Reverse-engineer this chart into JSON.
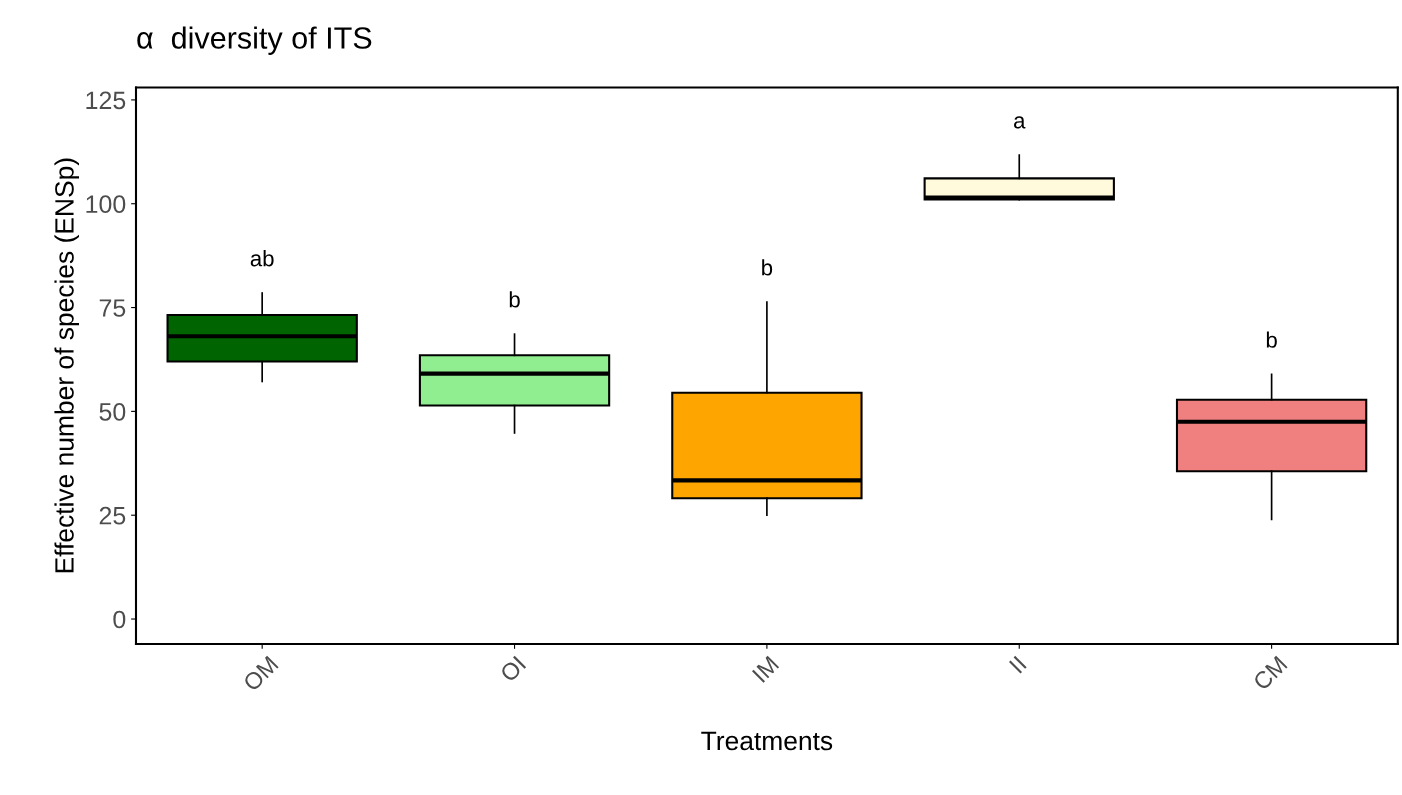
{
  "chart_data": {
    "type": "box",
    "title": "α  diversity of ITS",
    "xlabel": "Treatments",
    "ylabel": "Effective number of species (ENSp)",
    "categories": [
      "OM",
      "OI",
      "IM",
      "II",
      "CM"
    ],
    "colors": [
      "#006400",
      "#90ee90",
      "#ffa500",
      "#fffadc",
      "#f08080"
    ],
    "boxes": [
      {
        "low": 57.2,
        "q1": 62.0,
        "median": 68.1,
        "q3": 73.2,
        "high": 78.5
      },
      {
        "low": 44.8,
        "q1": 51.4,
        "median": 59.1,
        "q3": 63.5,
        "high": 68.6
      },
      {
        "low": 25.0,
        "q1": 29.1,
        "median": 33.4,
        "q3": 54.5,
        "high": 76.3
      },
      {
        "low": 101.0,
        "q1": 101.0,
        "median": 101.5,
        "q3": 106.1,
        "high": 111.7
      },
      {
        "low": 24.0,
        "q1": 35.6,
        "median": 47.5,
        "q3": 52.8,
        "high": 58.9
      }
    ],
    "ylim": [
      -6,
      128
    ],
    "yticks": [
      0,
      25,
      50,
      75,
      100,
      125
    ],
    "grid": false,
    "annotations": [
      "ab",
      "b",
      "b",
      "a",
      "b"
    ]
  }
}
